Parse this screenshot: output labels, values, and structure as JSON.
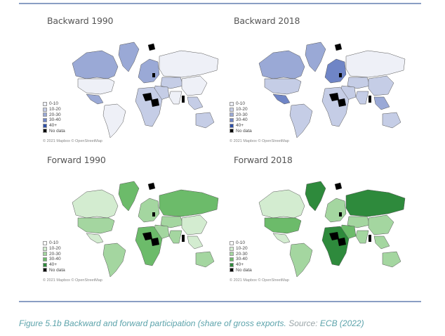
{
  "figure": {
    "caption_main": "Figure 5.1b Backward and forward participation (share of gross exports.",
    "caption_source_label": " Source:",
    "caption_source": " ECB (2022)"
  },
  "legend": {
    "labels": [
      "0-10",
      "10-20",
      "20-30",
      "30-40",
      "40+",
      "No data"
    ]
  },
  "attribution": "© 2021 Mapbox © OpenStreetMap",
  "chart_data": [
    {
      "type": "heatmap",
      "title": "Backward 1990",
      "map": "world choropleth",
      "legend": [
        "0-10",
        "10-20",
        "20-30",
        "30-40",
        "40+",
        "No data"
      ],
      "colors": [
        "#eef0f7",
        "#c5cde6",
        "#9aa9d6",
        "#6f85c6",
        "#2c4fa8",
        "#000000"
      ],
      "regions": {
        "north_america_canada": "20-30",
        "greenland": "20-30",
        "usa": "0-10",
        "mexico": "20-30",
        "south_america": "0-10",
        "europe": "20-30",
        "russia": "0-10",
        "central_asia": "10-20",
        "china": "0-10",
        "india": "0-10",
        "southeast_asia": "10-20",
        "middle_east": "10-20",
        "africa": "10-20",
        "australia": "10-20",
        "svalbard": "No data"
      }
    },
    {
      "type": "heatmap",
      "title": "Backward 2018",
      "map": "world choropleth",
      "legend": [
        "0-10",
        "10-20",
        "20-30",
        "30-40",
        "40+",
        "No data"
      ],
      "colors": [
        "#eef0f7",
        "#c5cde6",
        "#9aa9d6",
        "#6f85c6",
        "#2c4fa8",
        "#000000"
      ],
      "regions": {
        "north_america_canada": "20-30",
        "greenland": "20-30",
        "usa": "10-20",
        "mexico": "30-40",
        "south_america": "10-20",
        "europe": "30-40",
        "russia": "0-10",
        "central_asia": "10-20",
        "china": "10-20",
        "india": "10-20",
        "southeast_asia": "20-30",
        "middle_east": "10-20",
        "africa": "10-20",
        "australia": "10-20",
        "svalbard": "No data"
      }
    },
    {
      "type": "heatmap",
      "title": "Forward 1990",
      "map": "world choropleth",
      "legend": [
        "0-10",
        "10-20",
        "20-30",
        "30-40",
        "40+",
        "No data"
      ],
      "colors": [
        "#ffffff",
        "#d3ecd0",
        "#a4d6a0",
        "#6cbb6a",
        "#2e8a3c",
        "#000000"
      ],
      "regions": {
        "north_america_canada": "10-20",
        "greenland": "30-40",
        "usa": "20-30",
        "mexico": "10-20",
        "south_america": "20-30",
        "europe": "20-30",
        "russia": "30-40",
        "central_asia": "20-30",
        "china": "10-20",
        "india": "20-30",
        "southeast_asia": "10-20",
        "middle_east": "20-30",
        "africa": "30-40",
        "australia": "20-30",
        "svalbard": "No data"
      }
    },
    {
      "type": "heatmap",
      "title": "Forward 2018",
      "map": "world choropleth",
      "legend": [
        "0-10",
        "10-20",
        "20-30",
        "30-40",
        "40+",
        "No data"
      ],
      "colors": [
        "#ffffff",
        "#d3ecd0",
        "#a4d6a0",
        "#6cbb6a",
        "#2e8a3c",
        "#000000"
      ],
      "regions": {
        "north_america_canada": "10-20",
        "greenland": "40+",
        "usa": "30-40",
        "mexico": "10-20",
        "south_america": "20-30",
        "europe": "20-30",
        "russia": "40+",
        "central_asia": "20-30",
        "china": "20-30",
        "india": "20-30",
        "southeast_asia": "20-30",
        "middle_east": "30-40",
        "africa": "40+",
        "australia": "20-30",
        "svalbard": "No data"
      }
    }
  ]
}
